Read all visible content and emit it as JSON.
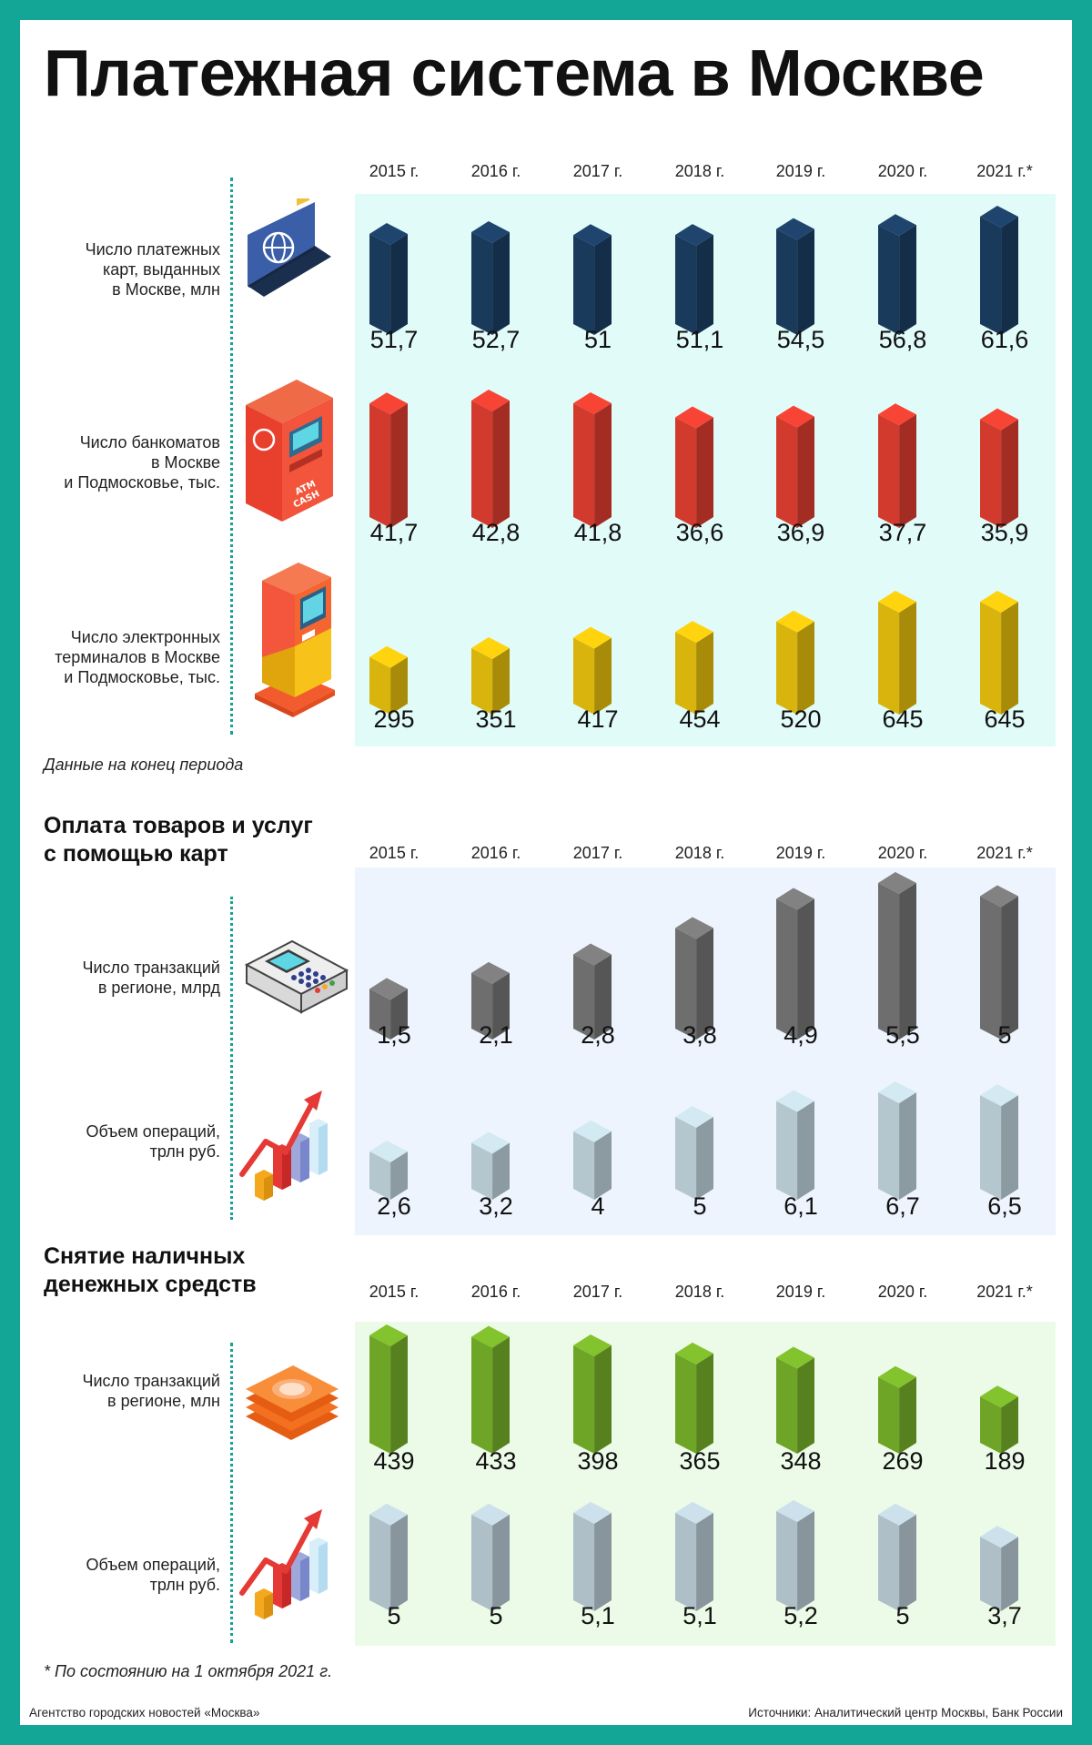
{
  "title": "Платежная система в Москве",
  "years": [
    "2015 г.",
    "2016 г.",
    "2017 г.",
    "2018 г.",
    "2019 г.",
    "2020 г.",
    "2021 г.*"
  ],
  "sections": [
    {
      "title": ""
    },
    {
      "title": "Оплата товаров и услуг\nс помощью карт"
    },
    {
      "title": "Снятие наличных\nденежных средств"
    }
  ],
  "period_note": "Данные на конец периода",
  "footnote": "* По состоянию на  1 октября 2021 г.",
  "footer": {
    "agency": "Агентство городских новостей «Москва»",
    "sources": "Источники: Аналитический центр Москвы, Банк России"
  },
  "colors": {
    "frame": "#13a596",
    "panel_1": "#e1fbf8",
    "panel_2": "#edf4fe",
    "panel_3": "#ecfbe8",
    "cards": "#1a3a5c",
    "atms": "#d13a2d",
    "terminals": "#d8b40c",
    "transactions_cards": "#6e6e6e",
    "volume_light": "#b4c6ce",
    "cash_transactions": "#6fa526",
    "cash_volume": "#aebfc8"
  },
  "icons": [
    "bank-card-icon",
    "atm-icon",
    "payment-terminal-icon",
    "pos-terminal-icon",
    "growth-chart-icon",
    "banknotes-icon",
    "growth-chart-icon"
  ],
  "chart_data": [
    {
      "type": "bar",
      "title": "Число платежных\nкарт, выданных\nв Москве, млн",
      "categories": [
        "2015 г.",
        "2016 г.",
        "2017 г.",
        "2018 г.",
        "2019 г.",
        "2020 г.",
        "2021 г.*"
      ],
      "values": [
        51.7,
        52.7,
        51,
        51.1,
        54.5,
        56.8,
        61.6
      ],
      "labels": [
        "51,7",
        "52,7",
        "51",
        "51,1",
        "54,5",
        "56,8",
        "61,6"
      ],
      "color": "#1a3a5c"
    },
    {
      "type": "bar",
      "title": "Число банкоматов\nв Москве\nи Подмосковье, тыс.",
      "categories": [
        "2015 г.",
        "2016 г.",
        "2017 г.",
        "2018 г.",
        "2019 г.",
        "2020 г.",
        "2021 г.*"
      ],
      "values": [
        41.7,
        42.8,
        41.8,
        36.6,
        36.9,
        37.7,
        35.9
      ],
      "labels": [
        "41,7",
        "42,8",
        "41,8",
        "36,6",
        "36,9",
        "37,7",
        "35,9"
      ],
      "color": "#d13a2d"
    },
    {
      "type": "bar",
      "title": "Число электронных\nтерминалов в Москве\nи Подмосковье, тыс.",
      "categories": [
        "2015 г.",
        "2016 г.",
        "2017 г.",
        "2018 г.",
        "2019 г.",
        "2020 г.",
        "2021 г.*"
      ],
      "values": [
        295,
        351,
        417,
        454,
        520,
        645,
        645
      ],
      "labels": [
        "295",
        "351",
        "417",
        "454",
        "520",
        "645",
        "645"
      ],
      "color": "#d8b40c"
    },
    {
      "type": "bar",
      "title": "Число транзакций\nв регионе, млрд",
      "categories": [
        "2015 г.",
        "2016 г.",
        "2017 г.",
        "2018 г.",
        "2019 г.",
        "2020 г.",
        "2021 г.*"
      ],
      "values": [
        1.5,
        2.1,
        2.8,
        3.8,
        4.9,
        5.5,
        5
      ],
      "labels": [
        "1,5",
        "2,1",
        "2,8",
        "3,8",
        "4,9",
        "5,5",
        "5"
      ],
      "color": "#6e6e6e"
    },
    {
      "type": "bar",
      "title": "Объем операций,\nтрлн руб.",
      "categories": [
        "2015 г.",
        "2016 г.",
        "2017 г.",
        "2018 г.",
        "2019 г.",
        "2020 г.",
        "2021 г.*"
      ],
      "values": [
        2.6,
        3.2,
        4,
        5,
        6.1,
        6.7,
        6.5
      ],
      "labels": [
        "2,6",
        "3,2",
        "4",
        "5",
        "6,1",
        "6,7",
        "6,5"
      ],
      "color": "#b4c6ce"
    },
    {
      "type": "bar",
      "title": "Число транзакций\nв регионе, млн",
      "categories": [
        "2015 г.",
        "2016 г.",
        "2017 г.",
        "2018 г.",
        "2019 г.",
        "2020 г.",
        "2021 г.*"
      ],
      "values": [
        439,
        433,
        398,
        365,
        348,
        269,
        189
      ],
      "labels": [
        "439",
        "433",
        "398",
        "365",
        "348",
        "269",
        "189"
      ],
      "color": "#6fa526"
    },
    {
      "type": "bar",
      "title": "Объем операций,\nтрлн руб.",
      "categories": [
        "2015 г.",
        "2016 г.",
        "2017 г.",
        "2018 г.",
        "2019 г.",
        "2020 г.",
        "2021 г.*"
      ],
      "values": [
        5,
        5,
        5.1,
        5.1,
        5.2,
        5,
        3.7
      ],
      "labels": [
        "5",
        "5",
        "5,1",
        "5,1",
        "5,2",
        "5",
        "3,7"
      ],
      "color": "#aebfc8"
    }
  ]
}
